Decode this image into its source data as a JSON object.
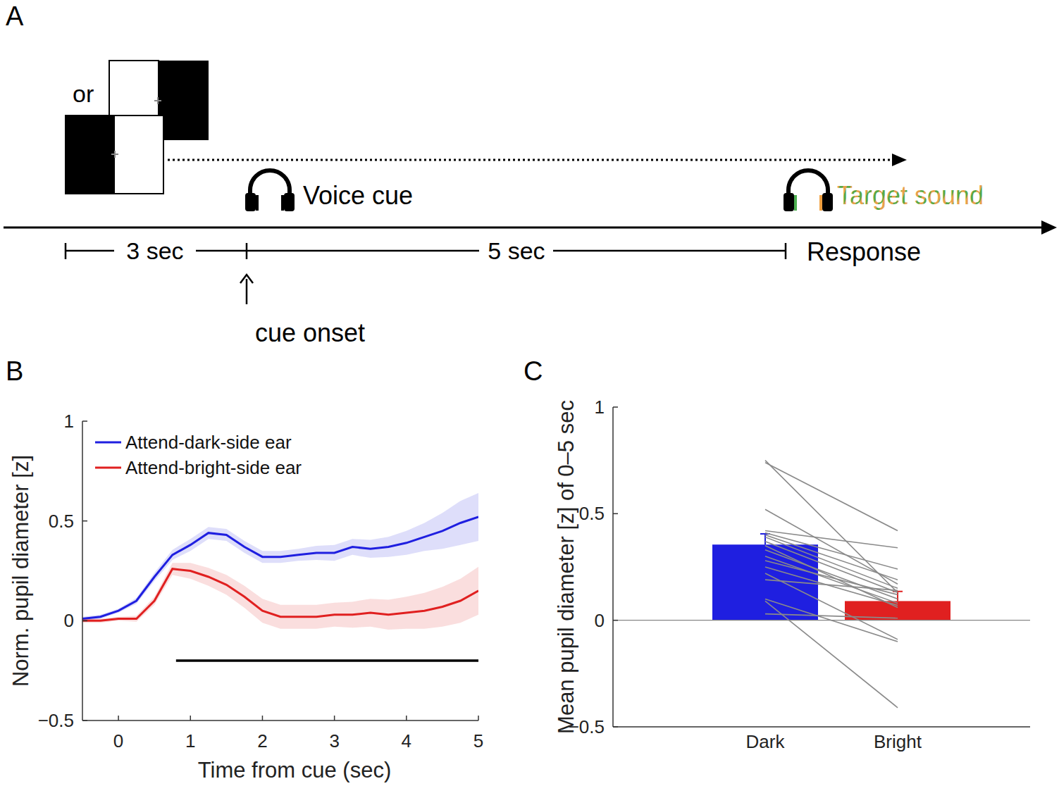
{
  "diagram": {
    "panel_label": "A",
    "or_label": "or",
    "voice_cue": "Voice cue",
    "target_sound": "Target sound",
    "interval_1": "3 sec",
    "interval_2": "5 sec",
    "response": "Response",
    "cue_onset": "cue onset"
  },
  "chart_data": [
    {
      "type": "line",
      "panel_label": "B",
      "x_label": "Time from cue (sec)",
      "y_label": "Norm. pupil diameter [z]",
      "x": [
        -0.5,
        -0.25,
        0,
        0.25,
        0.5,
        0.75,
        1,
        1.25,
        1.5,
        1.75,
        2,
        2.25,
        2.5,
        2.75,
        3,
        3.25,
        3.5,
        3.75,
        4,
        4.25,
        4.5,
        4.75,
        5
      ],
      "xlim": [
        -0.5,
        5
      ],
      "xticks": [
        0,
        1,
        2,
        3,
        4,
        5
      ],
      "ylim": [
        -0.5,
        1
      ],
      "yticks": [
        {
          "value": -0.5,
          "label": "−0.5"
        },
        0,
        0.5,
        1
      ],
      "legend": "upper left",
      "series": [
        {
          "name": "Attend-dark-side ear",
          "color": "#1f1fe0",
          "values": [
            0.01,
            0.02,
            0.05,
            0.1,
            0.22,
            0.33,
            0.38,
            0.44,
            0.43,
            0.37,
            0.32,
            0.32,
            0.33,
            0.34,
            0.34,
            0.37,
            0.36,
            0.37,
            0.39,
            0.42,
            0.45,
            0.49,
            0.52
          ],
          "error": [
            0.01,
            0.01,
            0.01,
            0.015,
            0.02,
            0.025,
            0.03,
            0.03,
            0.03,
            0.03,
            0.03,
            0.03,
            0.03,
            0.035,
            0.04,
            0.04,
            0.045,
            0.05,
            0.06,
            0.07,
            0.09,
            0.11,
            0.12
          ]
        },
        {
          "name": "Attend-bright-side ear",
          "color": "#e02020",
          "values": [
            0.0,
            0.0,
            0.01,
            0.01,
            0.1,
            0.26,
            0.25,
            0.22,
            0.18,
            0.12,
            0.05,
            0.02,
            0.02,
            0.02,
            0.03,
            0.03,
            0.04,
            0.03,
            0.04,
            0.05,
            0.07,
            0.1,
            0.15
          ],
          "error": [
            0.01,
            0.01,
            0.01,
            0.015,
            0.02,
            0.03,
            0.04,
            0.045,
            0.05,
            0.055,
            0.06,
            0.06,
            0.06,
            0.06,
            0.06,
            0.065,
            0.07,
            0.075,
            0.08,
            0.09,
            0.1,
            0.11,
            0.12
          ]
        }
      ],
      "significance": {
        "x": [
          0.8,
          5
        ],
        "y": -0.2
      }
    },
    {
      "type": "bar",
      "panel_label": "C",
      "y_label": "Mean pupil diameter [z] of 0–5 sec",
      "categories": [
        "Dark",
        "Bright"
      ],
      "values": [
        0.355,
        0.09
      ],
      "errors": [
        0.05,
        0.045
      ],
      "colors": [
        "#1f1fe0",
        "#e02020"
      ],
      "ylim": [
        -0.5,
        1
      ],
      "yticks": [
        {
          "value": -0.5,
          "label": "−0.5"
        },
        0,
        0.5,
        1
      ],
      "subjects": [
        [
          0.75,
          0.13
        ],
        [
          0.74,
          0.42
        ],
        [
          0.52,
          0.17
        ],
        [
          0.42,
          0.34
        ],
        [
          0.41,
          0.24
        ],
        [
          0.4,
          0.19
        ],
        [
          0.39,
          0.15
        ],
        [
          0.37,
          0.13
        ],
        [
          0.33,
          0.1
        ],
        [
          0.3,
          0.08
        ],
        [
          0.25,
          0.07
        ],
        [
          0.22,
          -0.09
        ],
        [
          0.19,
          0.14
        ],
        [
          0.1,
          -0.1
        ],
        [
          0.03,
          0.01
        ],
        [
          0.35,
          0.06
        ],
        [
          0.28,
          0.12
        ],
        [
          0.09,
          -0.41
        ]
      ]
    }
  ]
}
